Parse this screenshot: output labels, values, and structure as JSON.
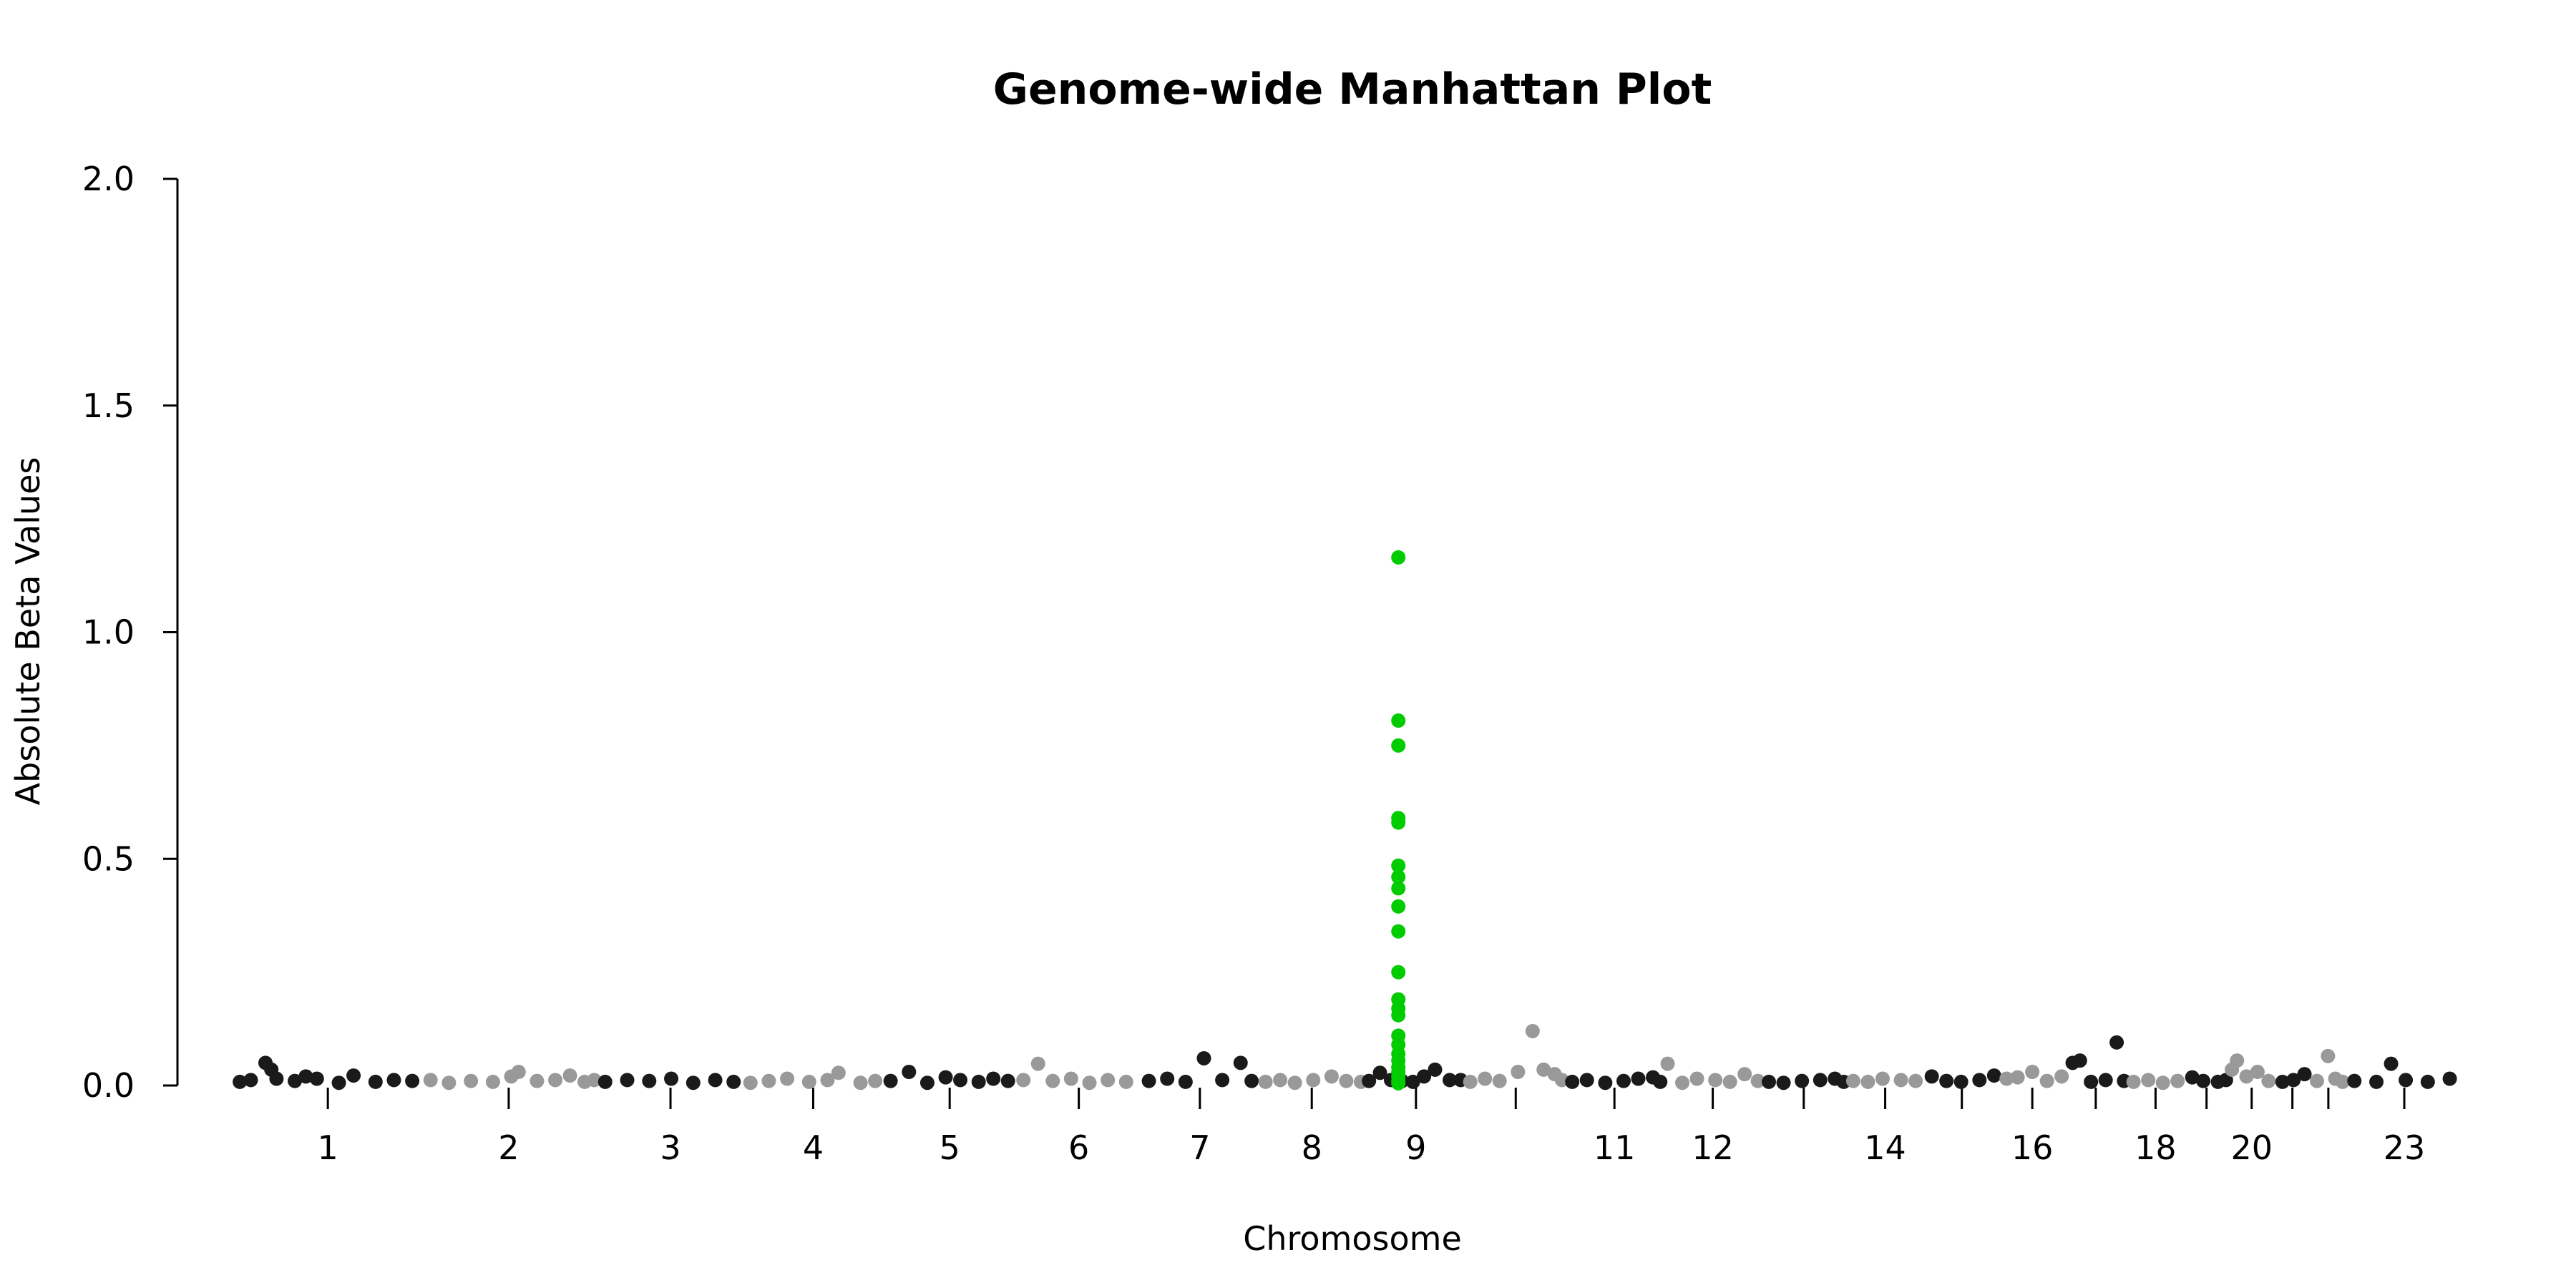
{
  "chart_data": {
    "type": "scatter",
    "title": "Genome-wide Manhattan Plot",
    "xlabel": "Chromosome",
    "ylabel": "Absolute Beta Values",
    "ylim": [
      0,
      2.0
    ],
    "y_ticks": [
      "0.0",
      "0.5",
      "1.0",
      "1.5",
      "2.0"
    ],
    "grid": false,
    "legend": "none",
    "colors": {
      "odd": "#1a1a1a",
      "even": "#999999",
      "highlight": "#00cc00"
    },
    "chromosomes": [
      {
        "chr": 1,
        "label": "1",
        "length": 250
      },
      {
        "chr": 2,
        "label": "2",
        "length": 243
      },
      {
        "chr": 3,
        "label": "3",
        "length": 198
      },
      {
        "chr": 4,
        "label": "4",
        "length": 191
      },
      {
        "chr": 5,
        "label": "5",
        "length": 181
      },
      {
        "chr": 6,
        "label": "6",
        "length": 171
      },
      {
        "chr": 7,
        "label": "7",
        "length": 159
      },
      {
        "chr": 8,
        "label": "8",
        "length": 146
      },
      {
        "chr": 9,
        "label": "9",
        "length": 138
      },
      {
        "chr": 10,
        "label": "",
        "length": 134
      },
      {
        "chr": 11,
        "label": "11",
        "length": 135
      },
      {
        "chr": 12,
        "label": "12",
        "length": 133
      },
      {
        "chr": 13,
        "label": "",
        "length": 115
      },
      {
        "chr": 14,
        "label": "14",
        "length": 107
      },
      {
        "chr": 15,
        "label": "",
        "length": 102
      },
      {
        "chr": 16,
        "label": "16",
        "length": 90
      },
      {
        "chr": 17,
        "label": "",
        "length": 83
      },
      {
        "chr": 18,
        "label": "18",
        "length": 80
      },
      {
        "chr": 19,
        "label": "",
        "length": 59
      },
      {
        "chr": 20,
        "label": "20",
        "length": 64
      },
      {
        "chr": 21,
        "label": "",
        "length": 47
      },
      {
        "chr": 22,
        "label": "",
        "length": 51
      },
      {
        "chr": 23,
        "label": "23",
        "length": 156
      }
    ],
    "points": [
      {
        "chr": 1,
        "pos": 5,
        "y": 0.008
      },
      {
        "chr": 1,
        "pos": 20,
        "y": 0.012
      },
      {
        "chr": 1,
        "pos": 40,
        "y": 0.05
      },
      {
        "chr": 1,
        "pos": 48,
        "y": 0.035
      },
      {
        "chr": 1,
        "pos": 55,
        "y": 0.015
      },
      {
        "chr": 1,
        "pos": 80,
        "y": 0.01
      },
      {
        "chr": 1,
        "pos": 95,
        "y": 0.02
      },
      {
        "chr": 1,
        "pos": 110,
        "y": 0.015
      },
      {
        "chr": 1,
        "pos": 140,
        "y": 0.006
      },
      {
        "chr": 1,
        "pos": 160,
        "y": 0.022
      },
      {
        "chr": 1,
        "pos": 190,
        "y": 0.008
      },
      {
        "chr": 1,
        "pos": 215,
        "y": 0.012
      },
      {
        "chr": 1,
        "pos": 240,
        "y": 0.01
      },
      {
        "chr": 2,
        "pos": 15,
        "y": 0.012
      },
      {
        "chr": 2,
        "pos": 40,
        "y": 0.006
      },
      {
        "chr": 2,
        "pos": 70,
        "y": 0.01
      },
      {
        "chr": 2,
        "pos": 100,
        "y": 0.008
      },
      {
        "chr": 2,
        "pos": 125,
        "y": 0.02
      },
      {
        "chr": 2,
        "pos": 135,
        "y": 0.03
      },
      {
        "chr": 2,
        "pos": 160,
        "y": 0.01
      },
      {
        "chr": 2,
        "pos": 185,
        "y": 0.012
      },
      {
        "chr": 2,
        "pos": 205,
        "y": 0.022
      },
      {
        "chr": 2,
        "pos": 225,
        "y": 0.008
      },
      {
        "chr": 2,
        "pos": 238,
        "y": 0.012
      },
      {
        "chr": 3,
        "pos": 10,
        "y": 0.008
      },
      {
        "chr": 3,
        "pos": 40,
        "y": 0.012
      },
      {
        "chr": 3,
        "pos": 70,
        "y": 0.01
      },
      {
        "chr": 3,
        "pos": 100,
        "y": 0.015
      },
      {
        "chr": 3,
        "pos": 130,
        "y": 0.006
      },
      {
        "chr": 3,
        "pos": 160,
        "y": 0.012
      },
      {
        "chr": 3,
        "pos": 185,
        "y": 0.008
      },
      {
        "chr": 4,
        "pos": 10,
        "y": 0.006
      },
      {
        "chr": 4,
        "pos": 35,
        "y": 0.01
      },
      {
        "chr": 4,
        "pos": 60,
        "y": 0.015
      },
      {
        "chr": 4,
        "pos": 90,
        "y": 0.008
      },
      {
        "chr": 4,
        "pos": 115,
        "y": 0.012
      },
      {
        "chr": 4,
        "pos": 130,
        "y": 0.028
      },
      {
        "chr": 4,
        "pos": 160,
        "y": 0.006
      },
      {
        "chr": 4,
        "pos": 180,
        "y": 0.01
      },
      {
        "chr": 5,
        "pos": 10,
        "y": 0.01
      },
      {
        "chr": 5,
        "pos": 35,
        "y": 0.03
      },
      {
        "chr": 5,
        "pos": 60,
        "y": 0.006
      },
      {
        "chr": 5,
        "pos": 85,
        "y": 0.018
      },
      {
        "chr": 5,
        "pos": 105,
        "y": 0.012
      },
      {
        "chr": 5,
        "pos": 130,
        "y": 0.008
      },
      {
        "chr": 5,
        "pos": 150,
        "y": 0.015
      },
      {
        "chr": 5,
        "pos": 170,
        "y": 0.01
      },
      {
        "chr": 6,
        "pos": 10,
        "y": 0.012
      },
      {
        "chr": 6,
        "pos": 30,
        "y": 0.048
      },
      {
        "chr": 6,
        "pos": 50,
        "y": 0.01
      },
      {
        "chr": 6,
        "pos": 75,
        "y": 0.015
      },
      {
        "chr": 6,
        "pos": 100,
        "y": 0.006
      },
      {
        "chr": 6,
        "pos": 125,
        "y": 0.012
      },
      {
        "chr": 6,
        "pos": 150,
        "y": 0.008
      },
      {
        "chr": 7,
        "pos": 10,
        "y": 0.01
      },
      {
        "chr": 7,
        "pos": 35,
        "y": 0.015
      },
      {
        "chr": 7,
        "pos": 60,
        "y": 0.008
      },
      {
        "chr": 7,
        "pos": 85,
        "y": 0.06
      },
      {
        "chr": 7,
        "pos": 110,
        "y": 0.012
      },
      {
        "chr": 7,
        "pos": 135,
        "y": 0.05
      },
      {
        "chr": 7,
        "pos": 150,
        "y": 0.01
      },
      {
        "chr": 8,
        "pos": 10,
        "y": 0.008
      },
      {
        "chr": 8,
        "pos": 30,
        "y": 0.012
      },
      {
        "chr": 8,
        "pos": 50,
        "y": 0.006
      },
      {
        "chr": 8,
        "pos": 75,
        "y": 0.012
      },
      {
        "chr": 8,
        "pos": 100,
        "y": 0.02
      },
      {
        "chr": 8,
        "pos": 120,
        "y": 0.01
      },
      {
        "chr": 8,
        "pos": 140,
        "y": 0.008
      },
      {
        "chr": 9,
        "pos": 5,
        "y": 0.01
      },
      {
        "chr": 9,
        "pos": 20,
        "y": 0.028
      },
      {
        "chr": 9,
        "pos": 35,
        "y": 0.012
      },
      {
        "chr": 9,
        "pos": 50,
        "y": 0.01
      },
      {
        "chr": 9,
        "pos": 65,
        "y": 0.008
      },
      {
        "chr": 9,
        "pos": 80,
        "y": 0.02
      },
      {
        "chr": 9,
        "pos": 95,
        "y": 0.035
      },
      {
        "chr": 9,
        "pos": 115,
        "y": 0.012
      },
      {
        "chr": 9,
        "pos": 130,
        "y": 0.012
      },
      {
        "chr": 10,
        "pos": 5,
        "y": 0.008
      },
      {
        "chr": 10,
        "pos": 25,
        "y": 0.015
      },
      {
        "chr": 10,
        "pos": 45,
        "y": 0.01
      },
      {
        "chr": 10,
        "pos": 70,
        "y": 0.03
      },
      {
        "chr": 10,
        "pos": 90,
        "y": 0.12
      },
      {
        "chr": 10,
        "pos": 105,
        "y": 0.035
      },
      {
        "chr": 10,
        "pos": 120,
        "y": 0.025
      },
      {
        "chr": 10,
        "pos": 130,
        "y": 0.012
      },
      {
        "chr": 11,
        "pos": 10,
        "y": 0.008
      },
      {
        "chr": 11,
        "pos": 30,
        "y": 0.012
      },
      {
        "chr": 11,
        "pos": 55,
        "y": 0.006
      },
      {
        "chr": 11,
        "pos": 80,
        "y": 0.01
      },
      {
        "chr": 11,
        "pos": 100,
        "y": 0.015
      },
      {
        "chr": 11,
        "pos": 120,
        "y": 0.018
      },
      {
        "chr": 11,
        "pos": 130,
        "y": 0.008
      },
      {
        "chr": 12,
        "pos": 5,
        "y": 0.048
      },
      {
        "chr": 12,
        "pos": 25,
        "y": 0.006
      },
      {
        "chr": 12,
        "pos": 45,
        "y": 0.015
      },
      {
        "chr": 12,
        "pos": 70,
        "y": 0.012
      },
      {
        "chr": 12,
        "pos": 90,
        "y": 0.008
      },
      {
        "chr": 12,
        "pos": 110,
        "y": 0.025
      },
      {
        "chr": 12,
        "pos": 128,
        "y": 0.01
      },
      {
        "chr": 13,
        "pos": 10,
        "y": 0.008
      },
      {
        "chr": 13,
        "pos": 30,
        "y": 0.006
      },
      {
        "chr": 13,
        "pos": 55,
        "y": 0.01
      },
      {
        "chr": 13,
        "pos": 80,
        "y": 0.012
      },
      {
        "chr": 13,
        "pos": 100,
        "y": 0.015
      },
      {
        "chr": 13,
        "pos": 112,
        "y": 0.008
      },
      {
        "chr": 14,
        "pos": 10,
        "y": 0.01
      },
      {
        "chr": 14,
        "pos": 30,
        "y": 0.008
      },
      {
        "chr": 14,
        "pos": 50,
        "y": 0.015
      },
      {
        "chr": 14,
        "pos": 75,
        "y": 0.012
      },
      {
        "chr": 14,
        "pos": 95,
        "y": 0.01
      },
      {
        "chr": 15,
        "pos": 10,
        "y": 0.02
      },
      {
        "chr": 15,
        "pos": 30,
        "y": 0.01
      },
      {
        "chr": 15,
        "pos": 50,
        "y": 0.008
      },
      {
        "chr": 15,
        "pos": 75,
        "y": 0.012
      },
      {
        "chr": 15,
        "pos": 95,
        "y": 0.022
      },
      {
        "chr": 16,
        "pos": 10,
        "y": 0.015
      },
      {
        "chr": 16,
        "pos": 25,
        "y": 0.018
      },
      {
        "chr": 16,
        "pos": 45,
        "y": 0.03
      },
      {
        "chr": 16,
        "pos": 65,
        "y": 0.01
      },
      {
        "chr": 16,
        "pos": 85,
        "y": 0.02
      },
      {
        "chr": 17,
        "pos": 10,
        "y": 0.05
      },
      {
        "chr": 17,
        "pos": 20,
        "y": 0.055
      },
      {
        "chr": 17,
        "pos": 35,
        "y": 0.008
      },
      {
        "chr": 17,
        "pos": 55,
        "y": 0.012
      },
      {
        "chr": 17,
        "pos": 70,
        "y": 0.095
      },
      {
        "chr": 17,
        "pos": 80,
        "y": 0.01
      },
      {
        "chr": 18,
        "pos": 10,
        "y": 0.008
      },
      {
        "chr": 18,
        "pos": 30,
        "y": 0.012
      },
      {
        "chr": 18,
        "pos": 50,
        "y": 0.006
      },
      {
        "chr": 18,
        "pos": 70,
        "y": 0.01
      },
      {
        "chr": 19,
        "pos": 10,
        "y": 0.018
      },
      {
        "chr": 19,
        "pos": 25,
        "y": 0.01
      },
      {
        "chr": 19,
        "pos": 45,
        "y": 0.008
      },
      {
        "chr": 19,
        "pos": 56,
        "y": 0.012
      },
      {
        "chr": 20,
        "pos": 5,
        "y": 0.035
      },
      {
        "chr": 20,
        "pos": 12,
        "y": 0.055
      },
      {
        "chr": 20,
        "pos": 25,
        "y": 0.02
      },
      {
        "chr": 20,
        "pos": 40,
        "y": 0.03
      },
      {
        "chr": 20,
        "pos": 55,
        "y": 0.01
      },
      {
        "chr": 21,
        "pos": 10,
        "y": 0.008
      },
      {
        "chr": 21,
        "pos": 25,
        "y": 0.012
      },
      {
        "chr": 21,
        "pos": 40,
        "y": 0.025
      },
      {
        "chr": 22,
        "pos": 10,
        "y": 0.01
      },
      {
        "chr": 22,
        "pos": 25,
        "y": 0.065
      },
      {
        "chr": 22,
        "pos": 35,
        "y": 0.015
      },
      {
        "chr": 22,
        "pos": 45,
        "y": 0.008
      },
      {
        "chr": 23,
        "pos": 10,
        "y": 0.01
      },
      {
        "chr": 23,
        "pos": 40,
        "y": 0.008
      },
      {
        "chr": 23,
        "pos": 60,
        "y": 0.048
      },
      {
        "chr": 23,
        "pos": 80,
        "y": 0.012
      },
      {
        "chr": 23,
        "pos": 110,
        "y": 0.008
      },
      {
        "chr": 23,
        "pos": 140,
        "y": 0.015
      }
    ],
    "highlight_points": [
      {
        "chr": 9,
        "pos": 45,
        "y": 1.165
      },
      {
        "chr": 9,
        "pos": 45,
        "y": 0.805
      },
      {
        "chr": 9,
        "pos": 45,
        "y": 0.75
      },
      {
        "chr": 9,
        "pos": 45,
        "y": 0.59
      },
      {
        "chr": 9,
        "pos": 45,
        "y": 0.58
      },
      {
        "chr": 9,
        "pos": 45,
        "y": 0.485
      },
      {
        "chr": 9,
        "pos": 45,
        "y": 0.46
      },
      {
        "chr": 9,
        "pos": 45,
        "y": 0.435
      },
      {
        "chr": 9,
        "pos": 45,
        "y": 0.395
      },
      {
        "chr": 9,
        "pos": 45,
        "y": 0.34
      },
      {
        "chr": 9,
        "pos": 45,
        "y": 0.25
      },
      {
        "chr": 9,
        "pos": 45,
        "y": 0.19
      },
      {
        "chr": 9,
        "pos": 45,
        "y": 0.17
      },
      {
        "chr": 9,
        "pos": 45,
        "y": 0.155
      },
      {
        "chr": 9,
        "pos": 45,
        "y": 0.11
      },
      {
        "chr": 9,
        "pos": 45,
        "y": 0.09
      },
      {
        "chr": 9,
        "pos": 45,
        "y": 0.07
      },
      {
        "chr": 9,
        "pos": 45,
        "y": 0.055
      },
      {
        "chr": 9,
        "pos": 45,
        "y": 0.04
      },
      {
        "chr": 9,
        "pos": 45,
        "y": 0.03
      },
      {
        "chr": 9,
        "pos": 45,
        "y": 0.02
      },
      {
        "chr": 9,
        "pos": 45,
        "y": 0.01
      },
      {
        "chr": 9,
        "pos": 45,
        "y": 0.005
      }
    ]
  }
}
